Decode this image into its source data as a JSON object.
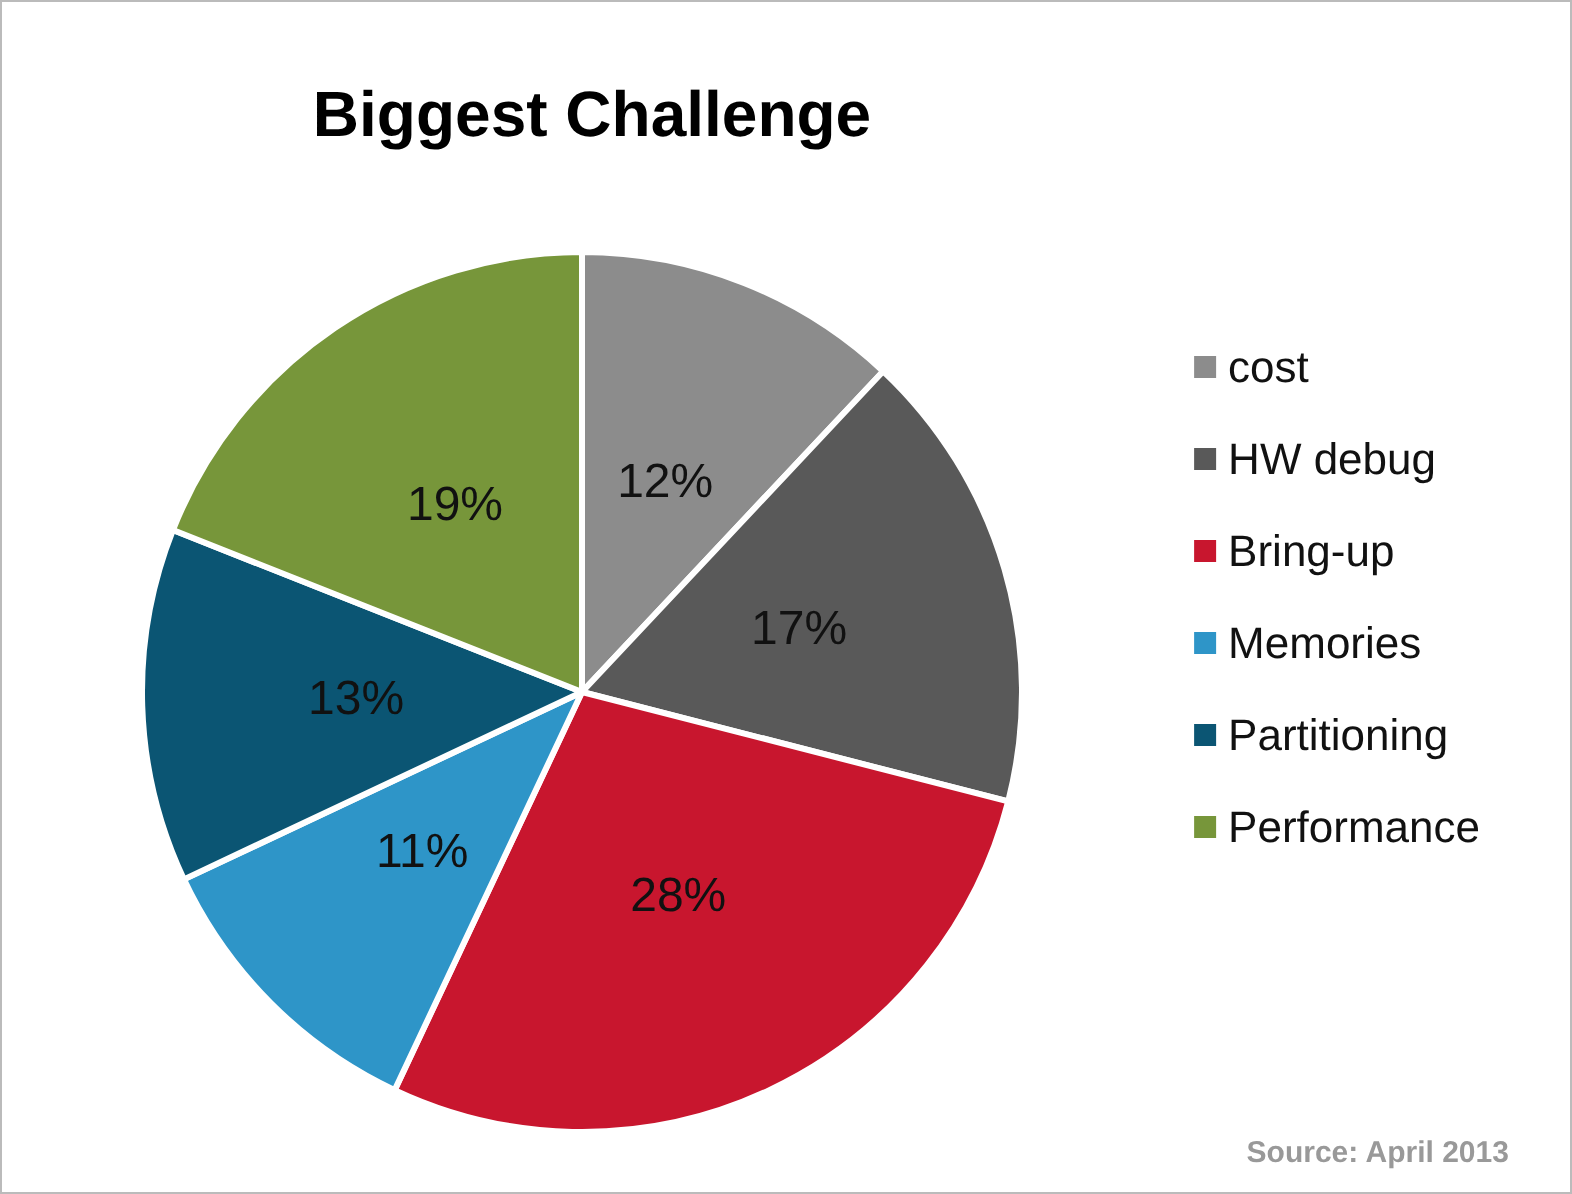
{
  "chart_data": {
    "type": "pie",
    "title": "Biggest Challenge",
    "categories": [
      "cost",
      "HW debug",
      "Bring-up",
      "Memories",
      "Partitioning",
      "Performance"
    ],
    "values": [
      12,
      17,
      28,
      11,
      13,
      19
    ],
    "colors": [
      "#8c8c8c",
      "#595959",
      "#c8162e",
      "#2e95c8",
      "#0b5573",
      "#77963a"
    ],
    "value_labels": [
      "12%",
      "17%",
      "28%",
      "11%",
      "13%",
      "19%"
    ],
    "legend": "right",
    "annotations": [
      "Source: April 2013"
    ]
  }
}
